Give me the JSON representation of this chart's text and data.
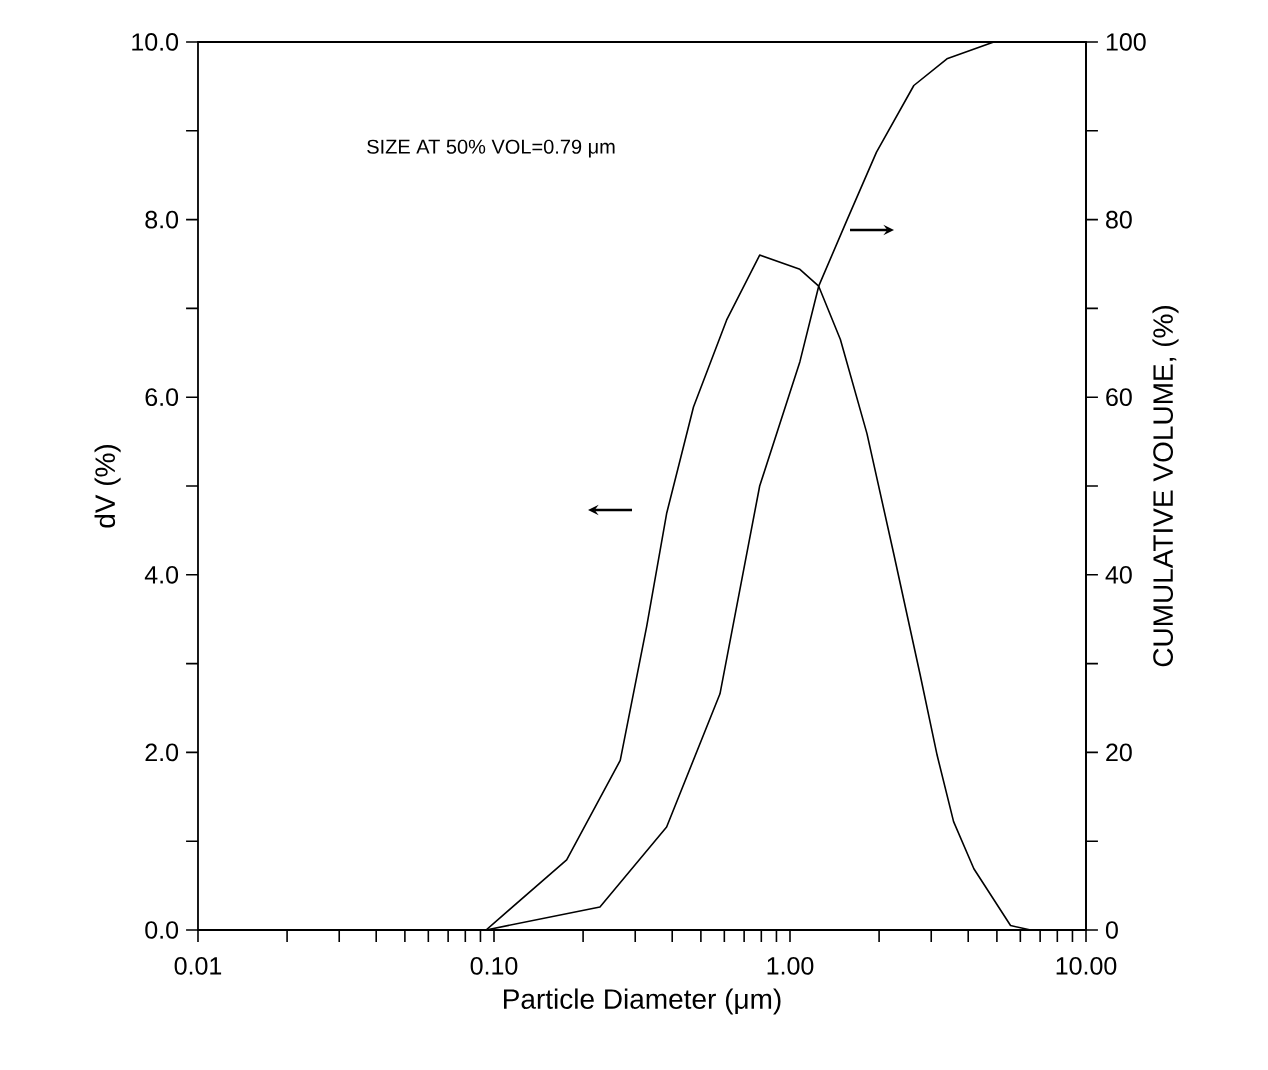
{
  "chart_data": {
    "type": "line",
    "xlabel": "Particle Diameter (μm)",
    "ylabel": "dV (%)",
    "y2label": "CUMULATIVE VOLUME, (%)",
    "annotations": [
      "SIZE AT 50% VOL=0.79 μm"
    ],
    "log": "x",
    "grid": false,
    "marker": "none",
    "line_style": "solid",
    "xlim": [
      0.01,
      10
    ],
    "ylim": [
      0,
      10
    ],
    "y2lim": [
      0,
      100
    ],
    "xticks": [
      0.01,
      {
        "value": 0.02,
        "label": null
      },
      {
        "value": 0.03,
        "label": null
      },
      {
        "value": 0.04,
        "label": null
      },
      {
        "value": 0.05,
        "label": null
      },
      {
        "value": 0.06,
        "label": null
      },
      {
        "value": 0.07,
        "label": null
      },
      {
        "value": 0.08,
        "label": null
      },
      {
        "value": 0.09,
        "label": null
      },
      {
        "value": 0.1,
        "label": "0.10"
      },
      {
        "value": 0.2,
        "label": null
      },
      {
        "value": 0.3,
        "label": null
      },
      {
        "value": 0.4,
        "label": null
      },
      {
        "value": 0.5,
        "label": null
      },
      {
        "value": 0.6,
        "label": null
      },
      {
        "value": 0.7,
        "label": null
      },
      {
        "value": 0.8,
        "label": null
      },
      {
        "value": 0.9,
        "label": null
      },
      {
        "value": 1,
        "label": "1.00"
      },
      {
        "value": 2,
        "label": null
      },
      {
        "value": 3,
        "label": null
      },
      {
        "value": 4,
        "label": null
      },
      {
        "value": 5,
        "label": null
      },
      {
        "value": 6,
        "label": null
      },
      {
        "value": 7,
        "label": null
      },
      {
        "value": 8,
        "label": null
      },
      {
        "value": 9,
        "label": null
      },
      {
        "value": 10,
        "label": "10.00"
      }
    ],
    "yticks": [
      {
        "value": 0,
        "label": "0.0"
      },
      {
        "value": 1,
        "label": null
      },
      {
        "value": 2,
        "label": "2.0"
      },
      {
        "value": 3,
        "label": null
      },
      {
        "value": 4,
        "label": "4.0"
      },
      {
        "value": 5,
        "label": null
      },
      {
        "value": 6,
        "label": "6.0"
      },
      {
        "value": 7,
        "label": null
      },
      {
        "value": 8,
        "label": "8.0"
      },
      {
        "value": 9,
        "label": null
      },
      {
        "value": 10,
        "label": "10.0"
      }
    ],
    "y2ticks": [
      0,
      {
        "value": 10,
        "label": null
      },
      20,
      {
        "value": 30,
        "label": null
      },
      40,
      {
        "value": 50,
        "label": null
      },
      60,
      {
        "value": 70,
        "label": null
      },
      80,
      {
        "value": 90,
        "label": null
      },
      100
    ],
    "series": [
      {
        "color": "#000000",
        "x": [
          0.094,
          0.176,
          0.267,
          0.328,
          0.383,
          0.472,
          0.611,
          0.79,
          1.08,
          1.25,
          1.48,
          1.82,
          2.24,
          2.75,
          3.14,
          3.57,
          4.18,
          5.56,
          6.5
        ],
        "values": [
          0,
          0.79,
          1.91,
          3.42,
          4.69,
          5.89,
          6.87,
          7.6,
          7.44,
          7.25,
          6.65,
          5.59,
          4.24,
          2.88,
          1.97,
          1.22,
          0.69,
          0.05,
          0
        ]
      },
      {
        "color": "#000000",
        "axis": "y2",
        "x": [
          0.094,
          0.228,
          0.383,
          0.58,
          0.79,
          1.08,
          1.25,
          1.56,
          1.96,
          2.62,
          3.39,
          4.88
        ],
        "values": [
          0,
          2.6,
          11.6,
          26.6,
          50,
          64,
          72.5,
          80,
          87.6,
          95.1,
          98.1,
          100
        ]
      }
    ]
  }
}
